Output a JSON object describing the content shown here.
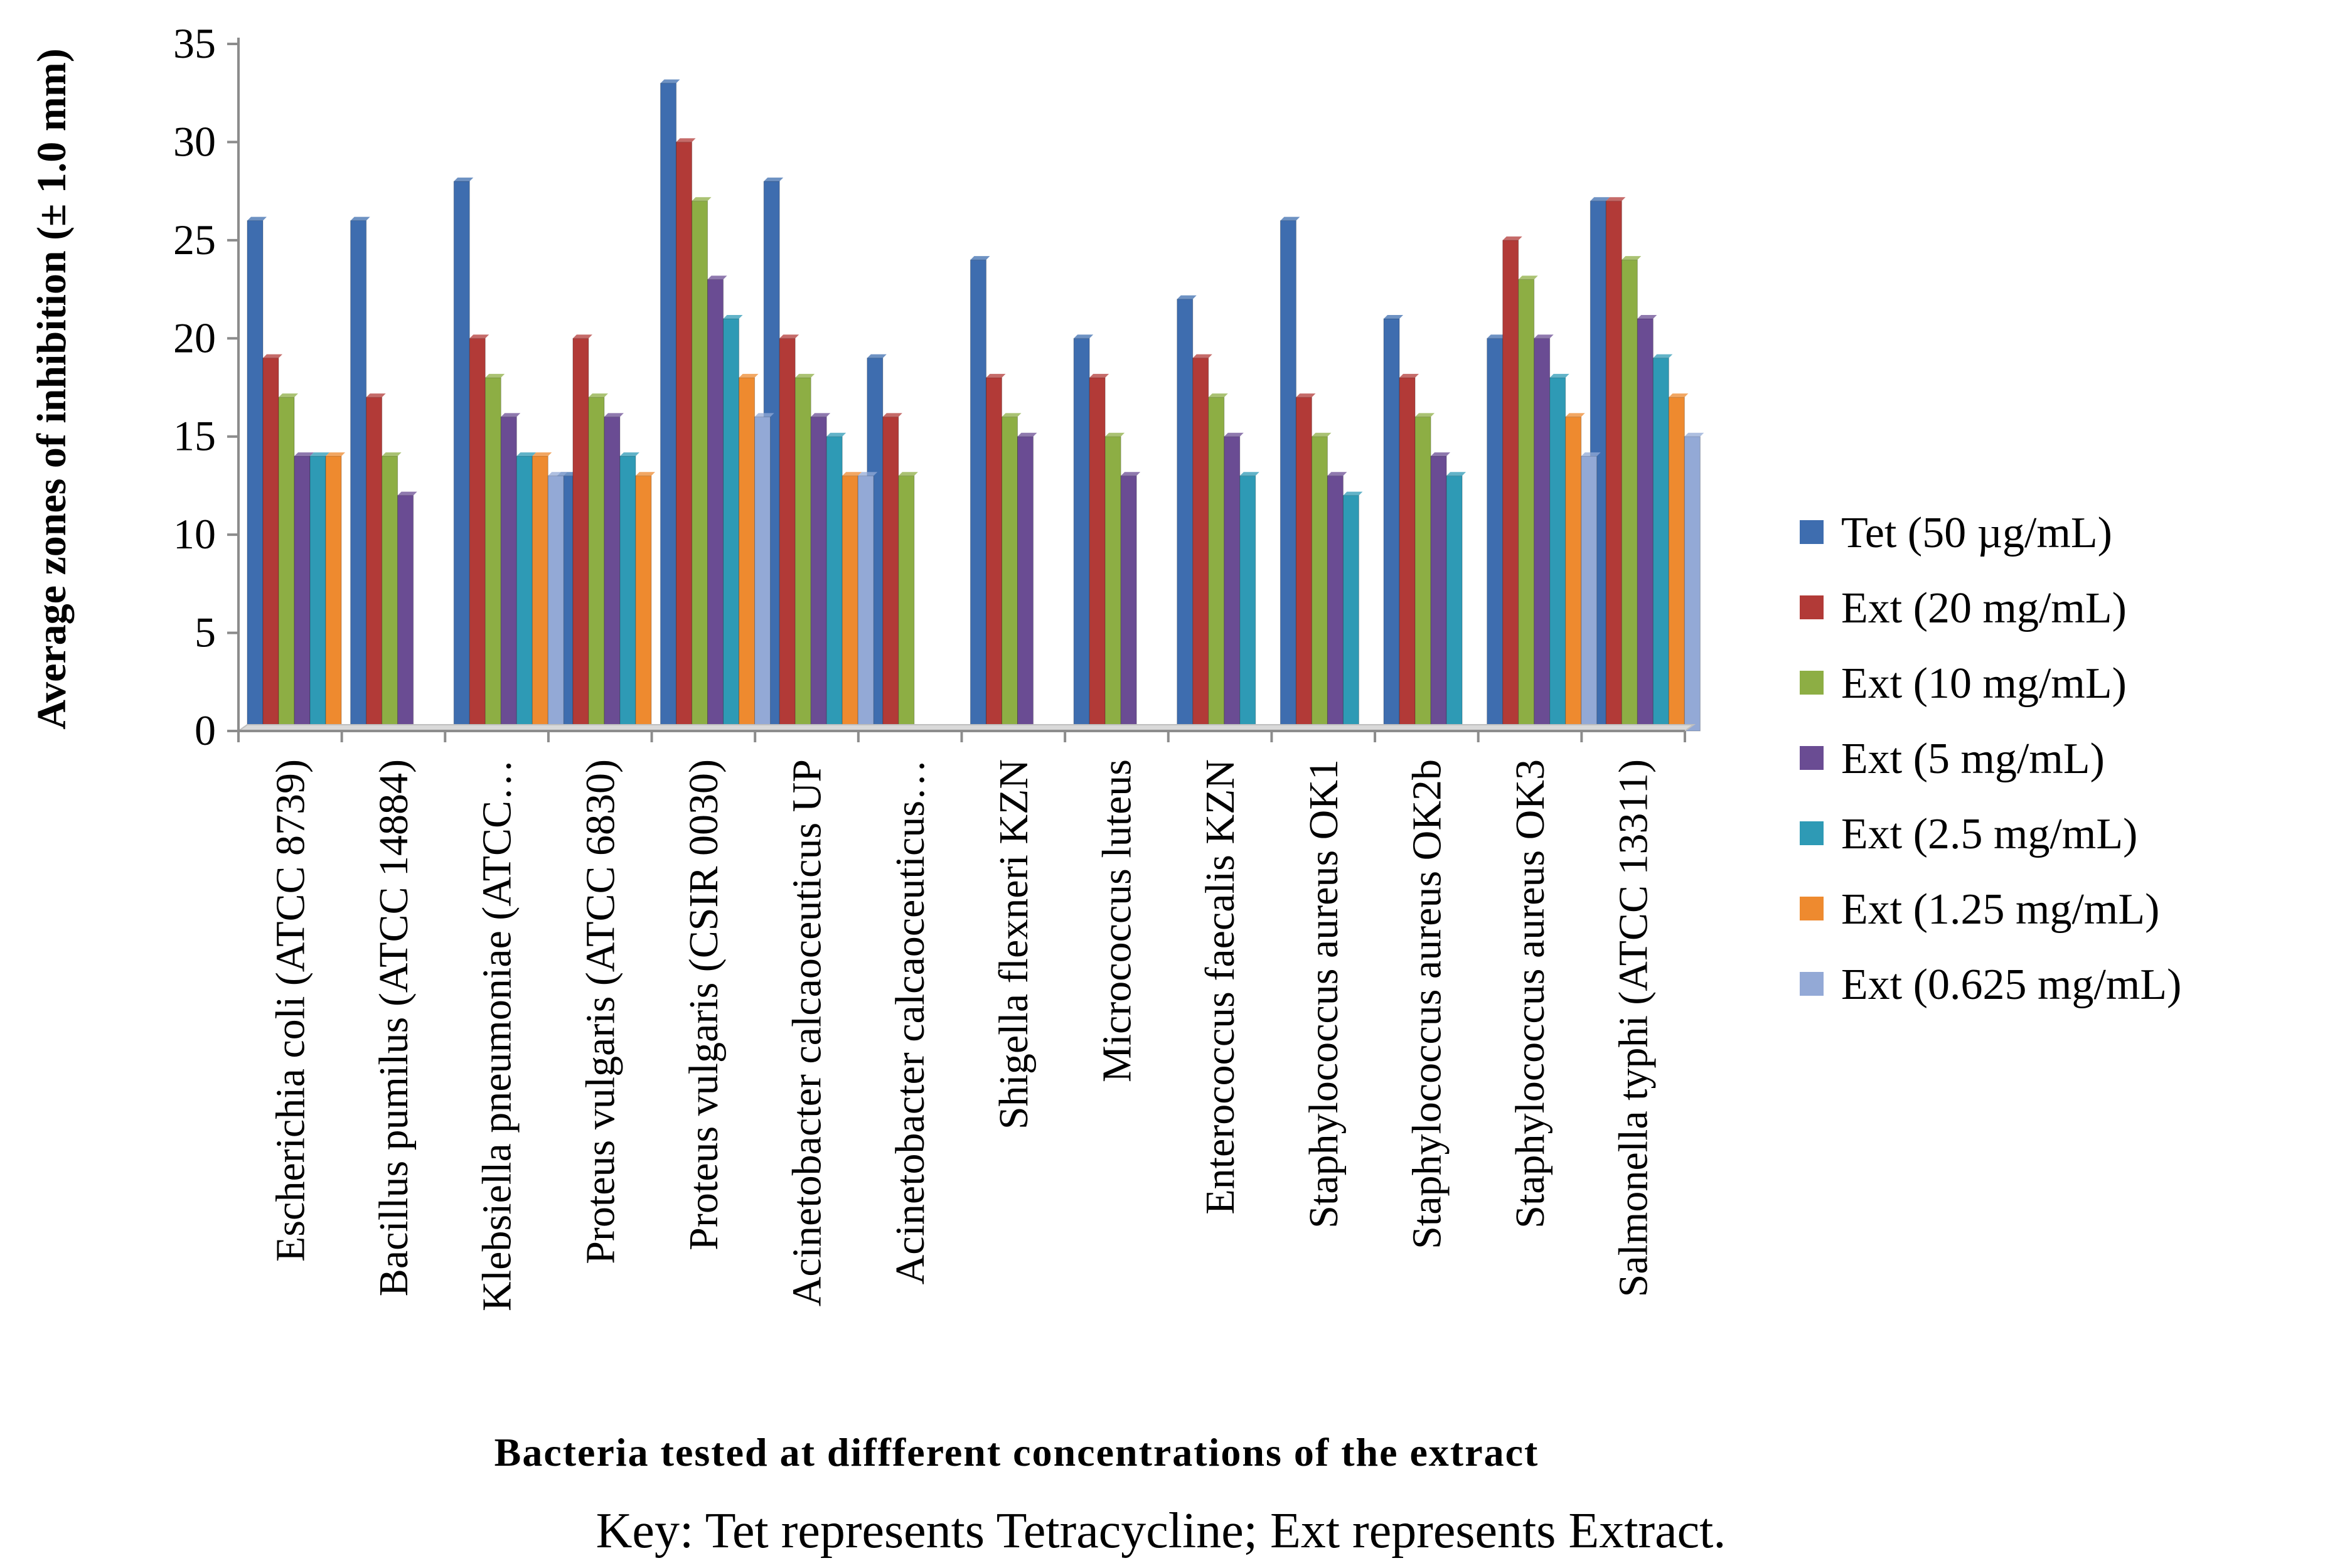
{
  "chart_data": {
    "type": "bar",
    "title": "",
    "xlabel": "Bacteria tested at diffferent concentrations of the extract",
    "ylabel": "Average zones of inhibition (± 1.0 mm)",
    "ylim": [
      0,
      35
    ],
    "yticks": [
      "0",
      "5",
      "10",
      "15",
      "20",
      "25",
      "30",
      "35"
    ],
    "legend_position": "right",
    "categories": [
      "Escherichia coli (ATCC 8739)",
      "Bacillus pumilus (ATCC 14884)",
      "Klebsiella pneumoniae (ATCC…",
      "Proteus vulgaris (ATCC 6830)",
      "Proteus vulgaris (CSIR 0030)",
      "Acinetobacter calcaoceuticus UP",
      "Acinetobacter calcaoceuticus…",
      "Shigella flexneri KZN",
      "Micrococcus luteus",
      "Enterococcus faecalis KZN",
      "Staphylococcus aureus OK1",
      "Staphylococcus aureus OK2b",
      "Staphylococcus aureus OK3",
      "Salmonella typhi (ATCC 13311)"
    ],
    "series": [
      {
        "name": "Tet (50 µg/mL)",
        "color": "#3E6DAF",
        "values": [
          26,
          26,
          28,
          13,
          33,
          28,
          19,
          24,
          20,
          22,
          26,
          21,
          20,
          27
        ]
      },
      {
        "name": "Ext (20 mg/mL)",
        "color": "#B23A37",
        "values": [
          19,
          17,
          20,
          20,
          30,
          20,
          16,
          18,
          18,
          19,
          17,
          18,
          25,
          27
        ]
      },
      {
        "name": "Ext (10 mg/mL)",
        "color": "#8DAE44",
        "values": [
          17,
          14,
          18,
          17,
          27,
          18,
          13,
          16,
          15,
          17,
          15,
          16,
          23,
          24
        ]
      },
      {
        "name": "Ext (5 mg/mL)",
        "color": "#6A4C93",
        "values": [
          14,
          12,
          16,
          16,
          23,
          16,
          0,
          15,
          13,
          15,
          13,
          14,
          20,
          21
        ]
      },
      {
        "name": "Ext (2.5 mg/mL)",
        "color": "#2E9AB5",
        "values": [
          14,
          0,
          14,
          14,
          21,
          15,
          0,
          0,
          0,
          13,
          12,
          13,
          18,
          19
        ]
      },
      {
        "name": "Ext (1.25 mg/mL)",
        "color": "#EE8A2F",
        "values": [
          14,
          0,
          14,
          13,
          18,
          13,
          0,
          0,
          0,
          0,
          0,
          0,
          16,
          17
        ]
      },
      {
        "name": "Ext (0.625 mg/mL)",
        "color": "#93A9D6",
        "values": [
          0,
          0,
          13,
          0,
          16,
          13,
          0,
          0,
          0,
          0,
          0,
          0,
          14,
          15
        ]
      }
    ]
  },
  "footnote": "Key: Tet represents Tetracycline; Ext represents Extract."
}
